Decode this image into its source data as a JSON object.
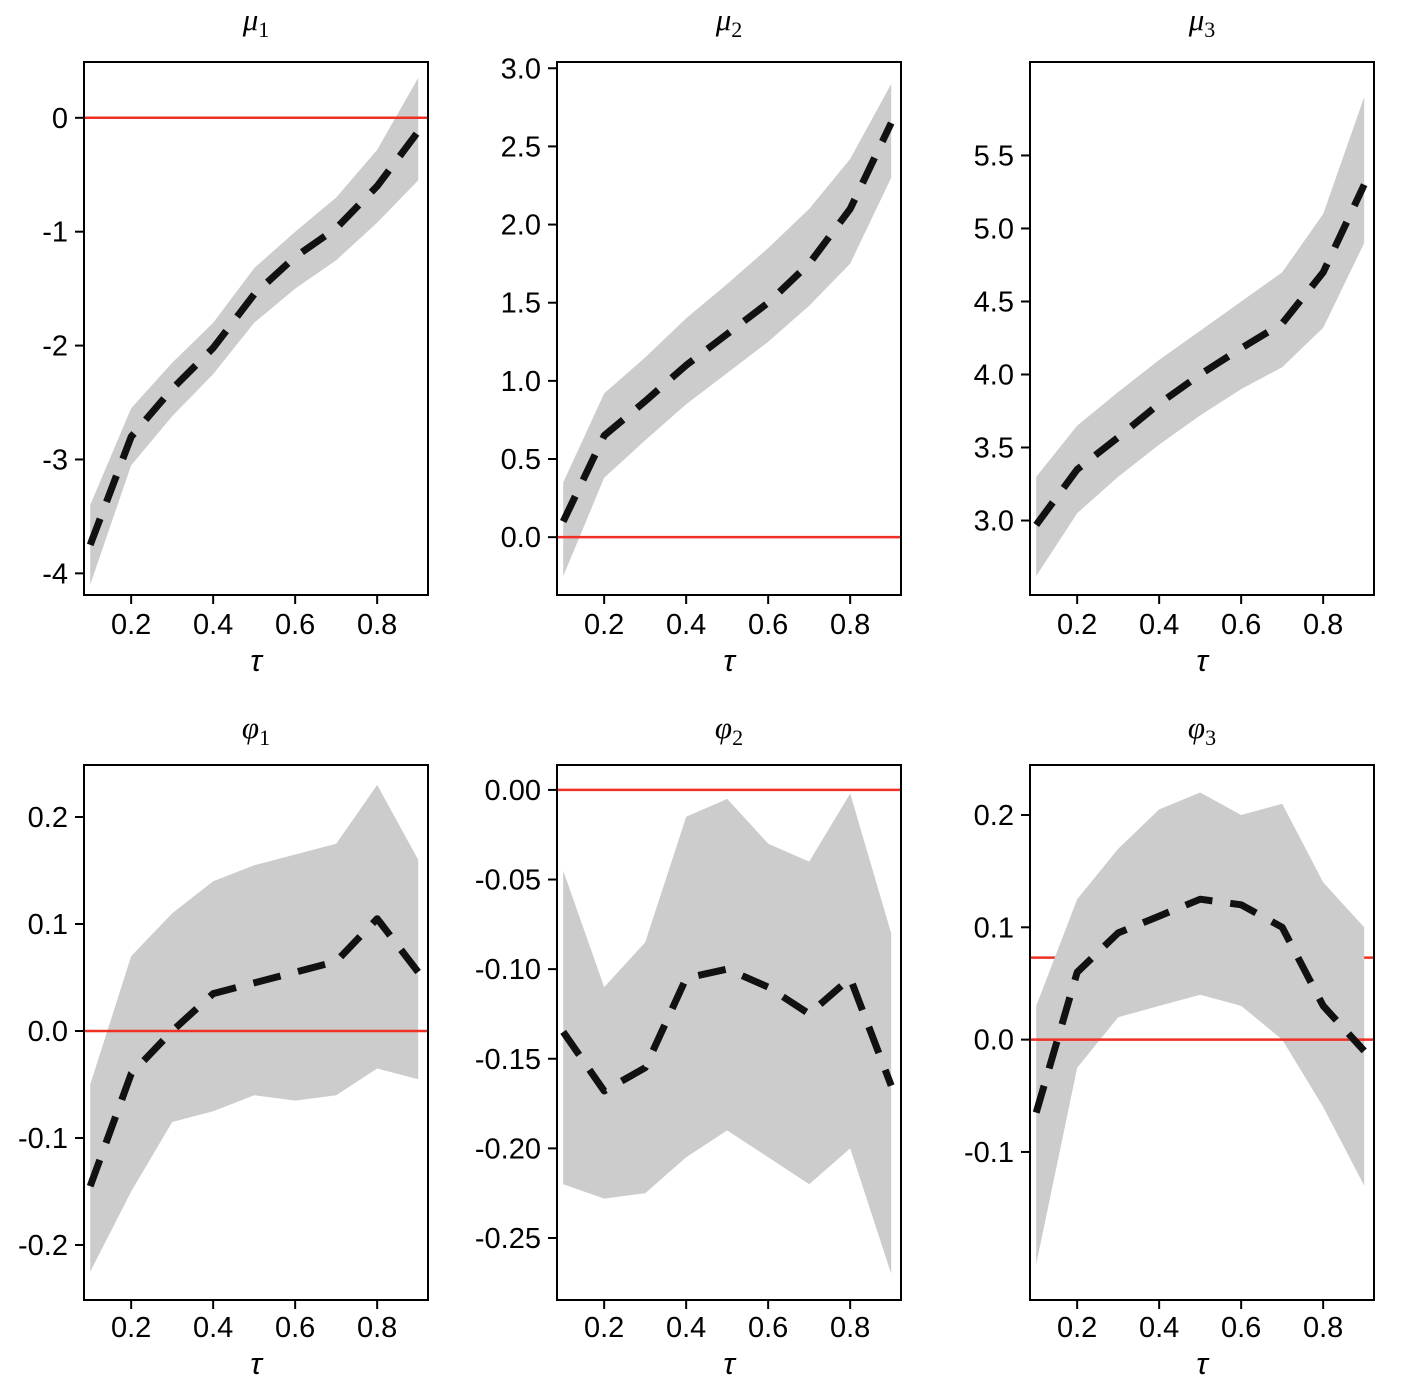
{
  "colors": {
    "band": "#cccccc",
    "estimate_line": "#111111",
    "reference_line": "#ee3124",
    "axis": "#000000",
    "background": "#ffffff"
  },
  "chart_data": [
    {
      "type": "line",
      "title_symbol": "μ",
      "title_sub": "1",
      "xlabel": "τ",
      "x": [
        0.1,
        0.2,
        0.3,
        0.4,
        0.5,
        0.6,
        0.7,
        0.8,
        0.9
      ],
      "estimate": [
        -3.75,
        -2.8,
        -2.38,
        -2.02,
        -1.55,
        -1.22,
        -0.97,
        -0.6,
        -0.12
      ],
      "lower": [
        -4.1,
        -3.05,
        -2.62,
        -2.25,
        -1.8,
        -1.5,
        -1.25,
        -0.92,
        -0.55
      ],
      "upper": [
        -3.4,
        -2.55,
        -2.15,
        -1.8,
        -1.32,
        -1.0,
        -0.7,
        -0.28,
        0.35
      ],
      "xlim": [
        0.085,
        0.924
      ],
      "ylim": [
        -4.19,
        0.49
      ],
      "yticks": [
        0,
        -1,
        -2,
        -3,
        -4
      ],
      "ytick_labels": [
        "0",
        "-1",
        "-2",
        "-3",
        "-4"
      ],
      "xticks": [
        0.2,
        0.4,
        0.6,
        0.8
      ],
      "xtick_labels": [
        "0.2",
        "0.4",
        "0.6",
        "0.8"
      ],
      "ref_lines": [
        {
          "y": 0,
          "above_band": true
        }
      ]
    },
    {
      "type": "line",
      "title_symbol": "μ",
      "title_sub": "2",
      "xlabel": "τ",
      "x": [
        0.1,
        0.2,
        0.3,
        0.4,
        0.5,
        0.6,
        0.7,
        0.8,
        0.9
      ],
      "estimate": [
        0.1,
        0.65,
        0.87,
        1.1,
        1.3,
        1.5,
        1.75,
        2.1,
        2.65
      ],
      "lower": [
        -0.25,
        0.38,
        0.62,
        0.85,
        1.05,
        1.25,
        1.48,
        1.75,
        2.3
      ],
      "upper": [
        0.35,
        0.92,
        1.15,
        1.4,
        1.62,
        1.85,
        2.1,
        2.42,
        2.9
      ],
      "xlim": [
        0.085,
        0.924
      ],
      "ylim": [
        -0.37,
        3.04
      ],
      "yticks": [
        3.0,
        2.5,
        2.0,
        1.5,
        1.0,
        0.5,
        0.0
      ],
      "ytick_labels": [
        "3.0",
        "2.5",
        "2.0",
        "1.5",
        "1.0",
        "0.5",
        "0.0"
      ],
      "xticks": [
        0.2,
        0.4,
        0.6,
        0.8
      ],
      "xtick_labels": [
        "0.2",
        "0.4",
        "0.6",
        "0.8"
      ],
      "ref_lines": [
        {
          "y": 0,
          "above_band": true
        }
      ]
    },
    {
      "type": "line",
      "title_symbol": "μ",
      "title_sub": "3",
      "xlabel": "τ",
      "x": [
        0.1,
        0.2,
        0.3,
        0.4,
        0.5,
        0.6,
        0.7,
        0.8,
        0.9
      ],
      "estimate": [
        2.97,
        3.35,
        3.57,
        3.8,
        4.0,
        4.18,
        4.35,
        4.7,
        5.3
      ],
      "lower": [
        2.62,
        3.05,
        3.3,
        3.52,
        3.72,
        3.9,
        4.05,
        4.32,
        4.9
      ],
      "upper": [
        3.3,
        3.65,
        3.88,
        4.1,
        4.3,
        4.5,
        4.7,
        5.1,
        5.9
      ],
      "xlim": [
        0.085,
        0.924
      ],
      "ylim": [
        2.49,
        6.14
      ],
      "yticks": [
        5.5,
        5.0,
        4.5,
        4.0,
        3.5,
        3.0
      ],
      "ytick_labels": [
        "5.5",
        "5.0",
        "4.5",
        "4.0",
        "3.5",
        "3.0"
      ],
      "xticks": [
        0.2,
        0.4,
        0.6,
        0.8
      ],
      "xtick_labels": [
        "0.2",
        "0.4",
        "0.6",
        "0.8"
      ],
      "ref_lines": []
    },
    {
      "type": "line",
      "title_symbol": "φ",
      "title_sub": "1",
      "xlabel": "τ",
      "x": [
        0.1,
        0.2,
        0.3,
        0.4,
        0.5,
        0.6,
        0.7,
        0.8,
        0.9
      ],
      "estimate": [
        -0.145,
        -0.04,
        0.0,
        0.035,
        0.045,
        0.055,
        0.065,
        0.105,
        0.055
      ],
      "lower": [
        -0.225,
        -0.15,
        -0.085,
        -0.075,
        -0.06,
        -0.065,
        -0.06,
        -0.035,
        -0.045
      ],
      "upper": [
        -0.05,
        0.07,
        0.11,
        0.14,
        0.155,
        0.165,
        0.175,
        0.23,
        0.16
      ],
      "xlim": [
        0.085,
        0.924
      ],
      "ylim": [
        -0.2514,
        0.2486
      ],
      "yticks": [
        0.2,
        0.1,
        0.0,
        -0.1,
        -0.2
      ],
      "ytick_labels": [
        "0.2",
        "0.1",
        "0.0",
        "-0.1",
        "-0.2"
      ],
      "xticks": [
        0.2,
        0.4,
        0.6,
        0.8
      ],
      "xtick_labels": [
        "0.2",
        "0.4",
        "0.6",
        "0.8"
      ],
      "ref_lines": [
        {
          "y": 0,
          "above_band": true
        }
      ]
    },
    {
      "type": "line",
      "title_symbol": "φ",
      "title_sub": "2",
      "xlabel": "τ",
      "x": [
        0.1,
        0.2,
        0.3,
        0.4,
        0.5,
        0.6,
        0.7,
        0.8,
        0.9
      ],
      "estimate": [
        -0.135,
        -0.168,
        -0.155,
        -0.105,
        -0.1,
        -0.11,
        -0.125,
        -0.105,
        -0.165
      ],
      "lower": [
        -0.22,
        -0.228,
        -0.225,
        -0.205,
        -0.19,
        -0.205,
        -0.22,
        -0.2,
        -0.27
      ],
      "upper": [
        -0.045,
        -0.11,
        -0.085,
        -0.015,
        -0.005,
        -0.03,
        -0.04,
        -0.002,
        -0.08
      ],
      "xlim": [
        0.085,
        0.924
      ],
      "ylim": [
        -0.2846,
        0.0139
      ],
      "yticks": [
        0.0,
        -0.05,
        -0.1,
        -0.15,
        -0.2,
        -0.25
      ],
      "ytick_labels": [
        "0.00",
        "-0.05",
        "-0.10",
        "-0.15",
        "-0.20",
        "-0.25"
      ],
      "xticks": [
        0.2,
        0.4,
        0.6,
        0.8
      ],
      "xtick_labels": [
        "0.2",
        "0.4",
        "0.6",
        "0.8"
      ],
      "ref_lines": [
        {
          "y": 0,
          "above_band": true
        }
      ]
    },
    {
      "type": "line",
      "title_symbol": "φ",
      "title_sub": "3",
      "xlabel": "τ",
      "x": [
        0.1,
        0.2,
        0.3,
        0.4,
        0.5,
        0.6,
        0.7,
        0.8,
        0.9
      ],
      "estimate": [
        -0.065,
        0.06,
        0.095,
        0.11,
        0.125,
        0.12,
        0.1,
        0.03,
        -0.01
      ],
      "lower": [
        -0.2,
        -0.025,
        0.02,
        0.03,
        0.04,
        0.03,
        0.0,
        -0.06,
        -0.13
      ],
      "upper": [
        0.03,
        0.125,
        0.17,
        0.205,
        0.22,
        0.2,
        0.21,
        0.14,
        0.1
      ],
      "xlim": [
        0.085,
        0.924
      ],
      "ylim": [
        -0.2318,
        0.2445
      ],
      "yticks": [
        0.2,
        0.1,
        0.0,
        -0.1
      ],
      "ytick_labels": [
        "0.2",
        "0.1",
        "0.0",
        "-0.1"
      ],
      "xticks": [
        0.2,
        0.4,
        0.6,
        0.8
      ],
      "xtick_labels": [
        "0.2",
        "0.4",
        "0.6",
        "0.8"
      ],
      "ref_lines": [
        {
          "y": 0,
          "above_band": true
        },
        {
          "y": 0.073,
          "above_band": false
        }
      ]
    }
  ]
}
